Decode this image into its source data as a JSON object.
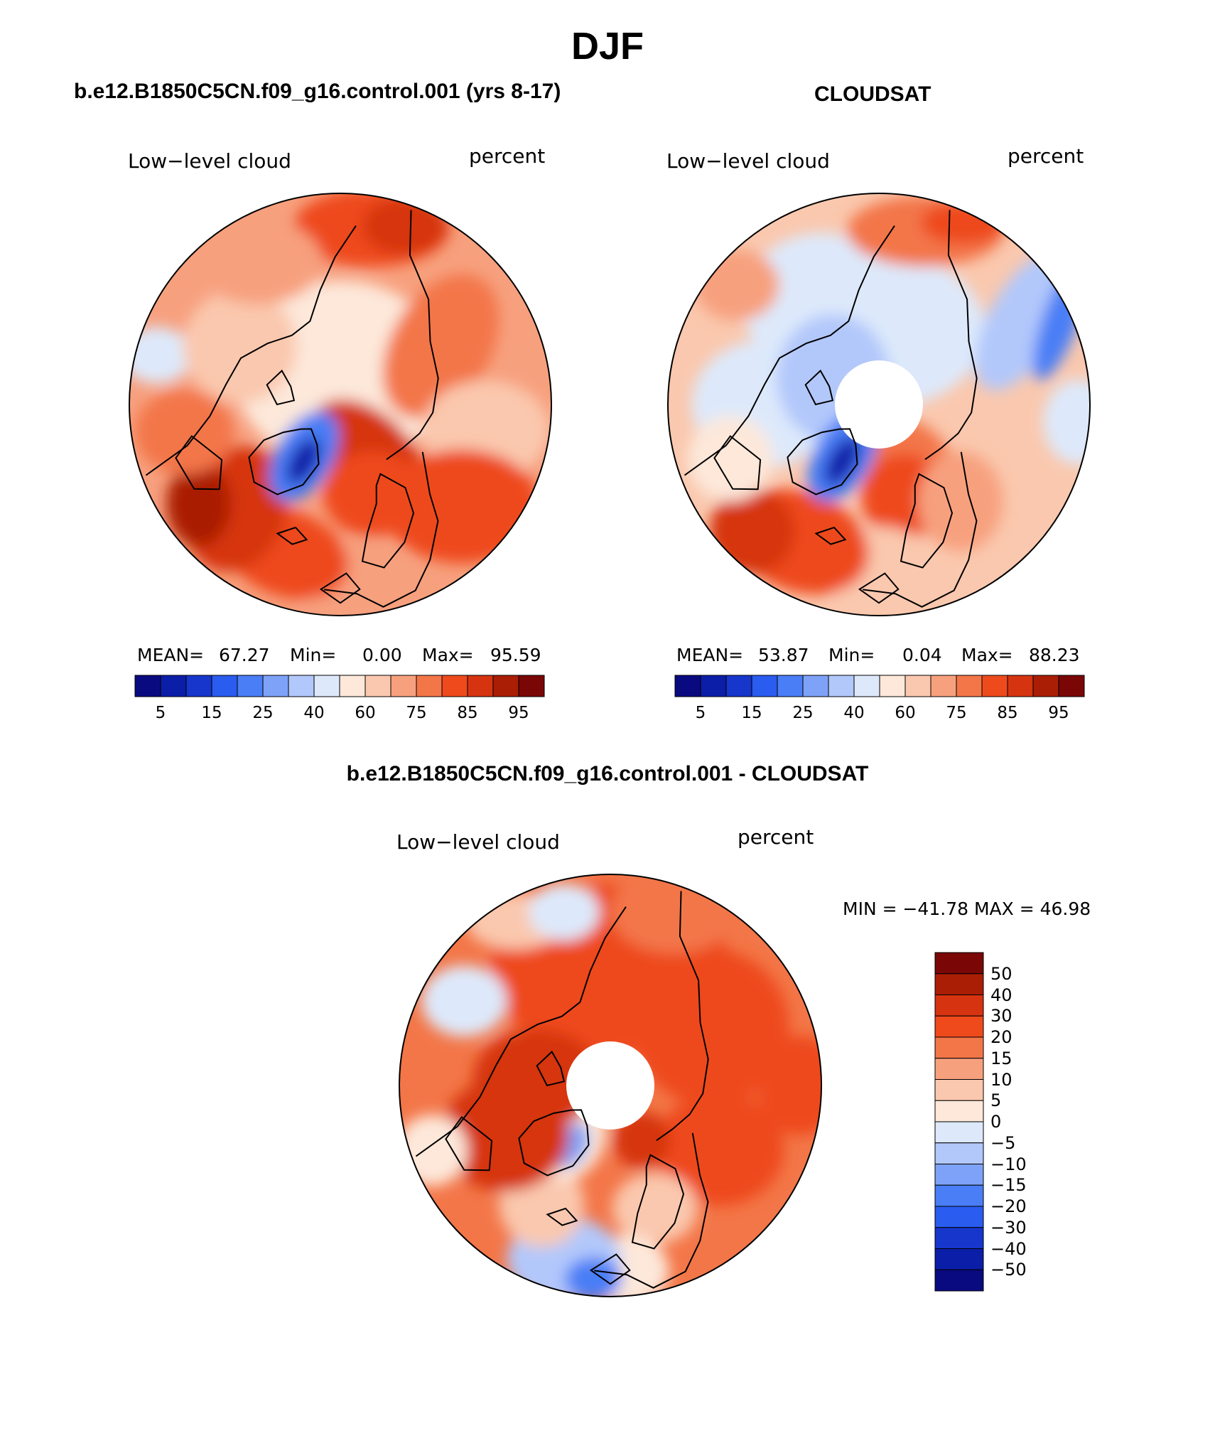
{
  "figure": {
    "title": "DJF",
    "palette_abs": [
      "#0a0a80",
      "#0b1ea8",
      "#1636cc",
      "#2a5cf0",
      "#4a7ef6",
      "#7ea2f7",
      "#b2c8fb",
      "#dde9fb",
      "#fde8da",
      "#fac8ae",
      "#f7a07e",
      "#f37648",
      "#ee4a1c",
      "#d63410",
      "#aa1e06",
      "#7a0606"
    ],
    "palette_diff": [
      "#0a0a80",
      "#0b1ea8",
      "#1636cc",
      "#2a5cf0",
      "#4a7ef6",
      "#7ea2f7",
      "#b2c8fb",
      "#dde9fb",
      "#fde8da",
      "#fac8ae",
      "#f7a07e",
      "#f37648",
      "#ee4a1c",
      "#d63410",
      "#aa1e06",
      "#7a0606"
    ]
  },
  "panels": [
    {
      "id": "model",
      "header": "b.e12.B1850C5CN.f09_g16.control.001 (yrs 8-17)",
      "variable": "Low−level cloud",
      "units": "percent",
      "stats": {
        "mean_label": "MEAN=",
        "mean": "67.27",
        "min_label": "Min=",
        "min": "0.00",
        "max_label": "Max=",
        "max": "95.59"
      },
      "colorbar_ticks": [
        "5",
        "15",
        "25",
        "40",
        "60",
        "75",
        "85",
        "95"
      ]
    },
    {
      "id": "obs",
      "header": "CLOUDSAT",
      "variable": "Low−level cloud",
      "units": "percent",
      "stats": {
        "mean_label": "MEAN=",
        "mean": "53.87",
        "min_label": "Min=",
        "min": "0.04",
        "max_label": "Max=",
        "max": "88.23"
      },
      "colorbar_ticks": [
        "5",
        "15",
        "25",
        "40",
        "60",
        "75",
        "85",
        "95"
      ]
    }
  ],
  "diff": {
    "header": "b.e12.B1850C5CN.f09_g16.control.001 - CLOUDSAT",
    "variable": "Low−level cloud",
    "units": "percent",
    "minmax": "MIN = −41.78 MAX =   46.98",
    "colorbar_ticks": [
      "50",
      "40",
      "30",
      "20",
      "15",
      "10",
      "5",
      "0",
      "−5",
      "−10",
      "−15",
      "−20",
      "−30",
      "−40",
      "−50"
    ]
  }
}
